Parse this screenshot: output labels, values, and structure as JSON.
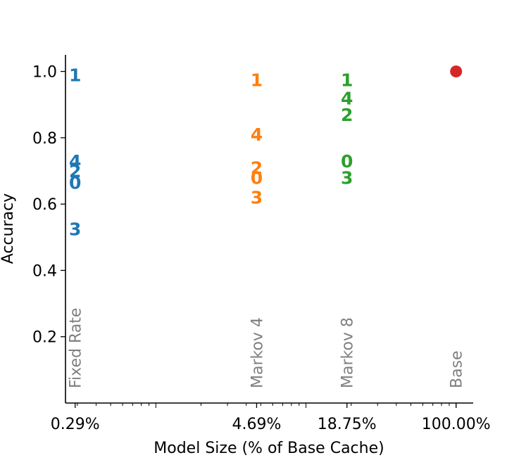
{
  "chart_data": {
    "type": "scatter",
    "xlabel": "Model Size (% of Base Cache)",
    "ylabel": "Accuracy",
    "xscale": "log",
    "xlim": [
      0.25,
      130
    ],
    "ylim": [
      0.0,
      1.05
    ],
    "x_ticks": [
      {
        "value": 0.29,
        "label": "0.29%"
      },
      {
        "value": 4.69,
        "label": "4.69%"
      },
      {
        "value": 18.75,
        "label": "18.75%"
      },
      {
        "value": 100.0,
        "label": "100.00%"
      }
    ],
    "y_ticks": [
      {
        "value": 0.2,
        "label": "0.2"
      },
      {
        "value": 0.4,
        "label": "0.4"
      },
      {
        "value": 0.6,
        "label": "0.6"
      },
      {
        "value": 0.8,
        "label": "0.8"
      },
      {
        "value": 1.0,
        "label": "1.0"
      }
    ],
    "group_labels": [
      {
        "x": 0.29,
        "text": "Fixed Rate"
      },
      {
        "x": 4.69,
        "text": "Markov 4"
      },
      {
        "x": 18.75,
        "text": "Markov 8"
      },
      {
        "x": 100.0,
        "text": "Base"
      }
    ],
    "series": [
      {
        "name": "Fixed Rate",
        "color": "#1f77b4",
        "x": 0.29,
        "points": [
          {
            "label": "1",
            "y": 0.99
          },
          {
            "label": "4",
            "y": 0.73
          },
          {
            "label": "2",
            "y": 0.7
          },
          {
            "label": "0",
            "y": 0.665
          },
          {
            "label": "3",
            "y": 0.525
          }
        ]
      },
      {
        "name": "Markov 4",
        "color": "#ff7f0e",
        "x": 4.69,
        "points": [
          {
            "label": "1",
            "y": 0.975
          },
          {
            "label": "4",
            "y": 0.81
          },
          {
            "label": "2",
            "y": 0.71
          },
          {
            "label": "0",
            "y": 0.68
          },
          {
            "label": "3",
            "y": 0.62
          }
        ]
      },
      {
        "name": "Markov 8",
        "color": "#2ca02c",
        "x": 18.75,
        "points": [
          {
            "label": "1",
            "y": 0.975
          },
          {
            "label": "4",
            "y": 0.92
          },
          {
            "label": "2",
            "y": 0.87
          },
          {
            "label": "0",
            "y": 0.73
          },
          {
            "label": "3",
            "y": 0.68
          }
        ]
      },
      {
        "name": "Base",
        "color": "#d62728",
        "x": 100.0,
        "marker": "circle",
        "points": [
          {
            "label": "",
            "y": 1.0
          }
        ]
      }
    ]
  }
}
